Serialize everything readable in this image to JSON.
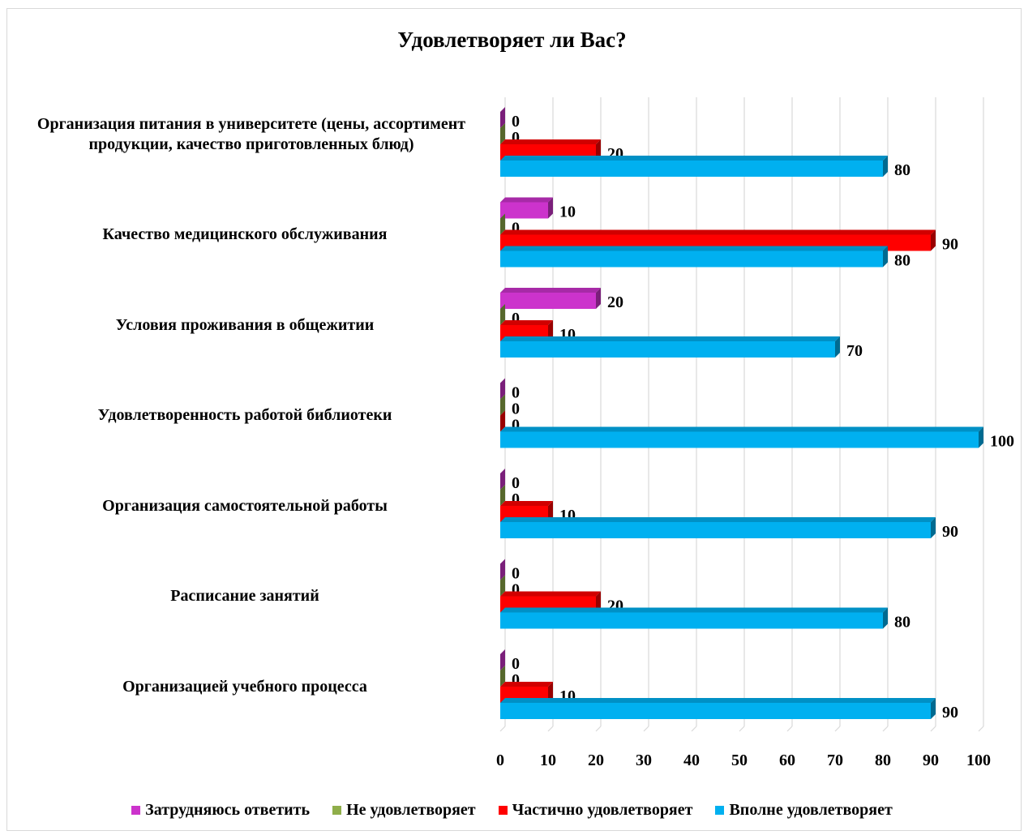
{
  "chart_data": {
    "type": "bar",
    "orientation": "horizontal",
    "title": "Удовлетворяет ли Вас?",
    "categories": [
      "Организация питания в университете (цены, ассортимент продукции, качество приготовленных блюд)",
      "Качество медицинского обслуживания",
      "Условия проживания в общежитии",
      "Удовлетворенность работой библиотеки",
      "Организация самостоятельной работы",
      "Расписание занятий",
      "Организацией учебного процесса"
    ],
    "series": [
      {
        "name": "Затрудняюсь ответить",
        "color": "#cc33cc",
        "values": [
          0,
          10,
          20,
          0,
          0,
          0,
          0
        ]
      },
      {
        "name": "Не удовлетворяет",
        "color": "#8fae4a",
        "values": [
          0,
          0,
          0,
          0,
          0,
          0,
          0
        ]
      },
      {
        "name": "Частично удовлетворяет",
        "color": "#ff0000",
        "values": [
          20,
          90,
          10,
          0,
          10,
          20,
          10
        ]
      },
      {
        "name": "Вполне удовлетворяет",
        "color": "#00b0f0",
        "values": [
          80,
          80,
          70,
          100,
          90,
          80,
          90
        ]
      }
    ],
    "xlim": [
      0,
      100
    ],
    "xticks": [
      "0",
      "10",
      "20",
      "30",
      "40",
      "50",
      "60",
      "70",
      "80",
      "90",
      "100"
    ],
    "grid": true,
    "legend_position": "bottom"
  }
}
